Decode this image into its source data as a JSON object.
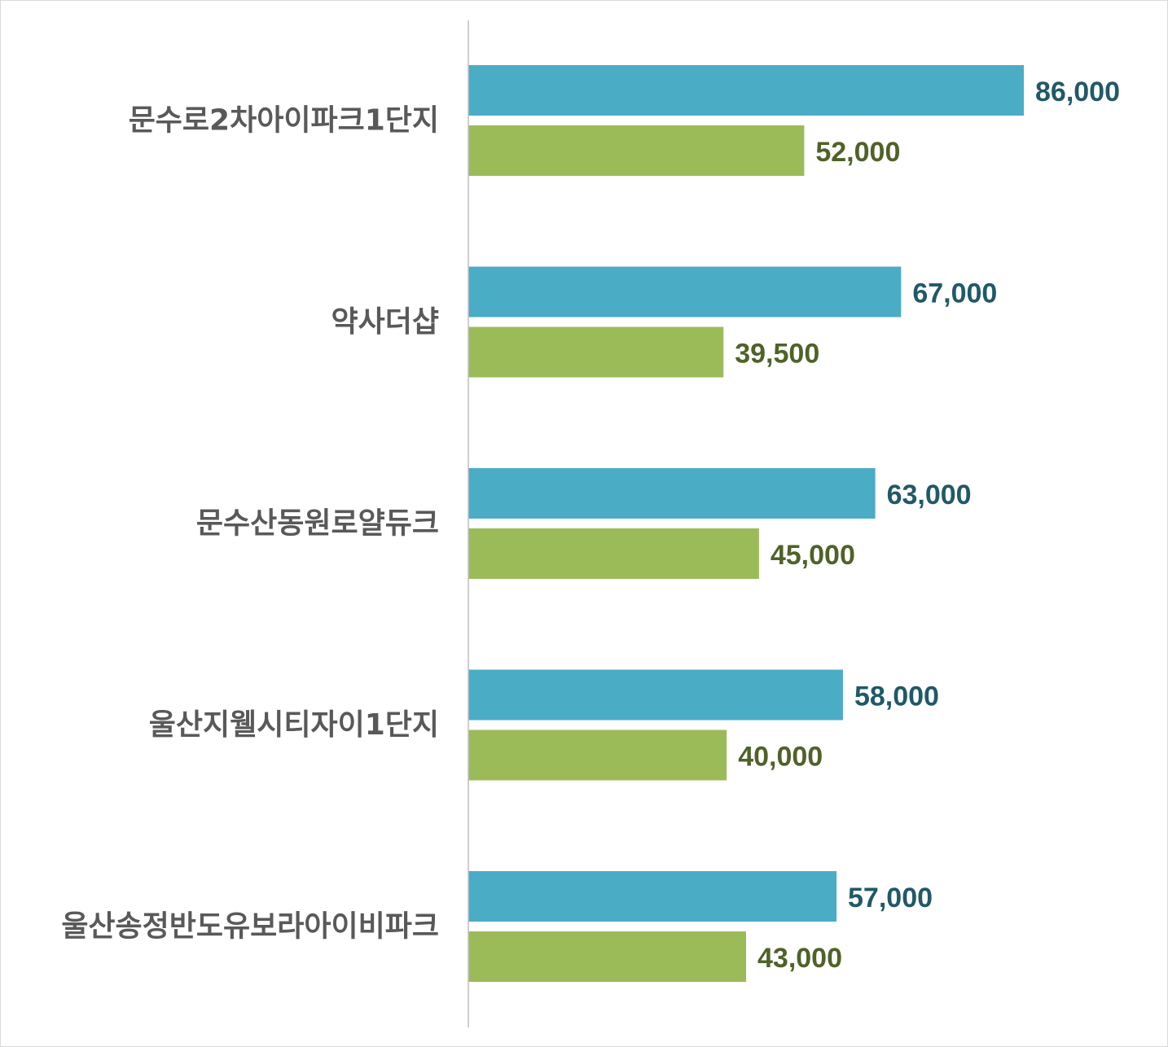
{
  "chart_data": {
    "type": "bar",
    "orientation": "horizontal",
    "categories": [
      "문수로2차아이파크1단지",
      "약사더샵",
      "문수산동원로얄듀크",
      "울산지웰시티자이1단지",
      "울산송정반도유보라아이비파크"
    ],
    "series": [
      {
        "values": [
          86000,
          67000,
          63000,
          58000,
          57000
        ],
        "value_labels": [
          "86,000",
          "67,000",
          "63,000",
          "58,000",
          "57,000"
        ],
        "color": "#4BACC6",
        "label_color": "#215967"
      },
      {
        "values": [
          52000,
          39500,
          45000,
          40000,
          43000
        ],
        "value_labels": [
          "52,000",
          "39,500",
          "45,000",
          "40,000",
          "43,000"
        ],
        "color": "#9BBB59",
        "label_color": "#4F6228"
      }
    ],
    "xlim": [
      0,
      86000
    ],
    "grid": false,
    "legend": "none",
    "title": "",
    "xlabel": "",
    "ylabel": "",
    "axis_color": "#bfbfbf"
  }
}
